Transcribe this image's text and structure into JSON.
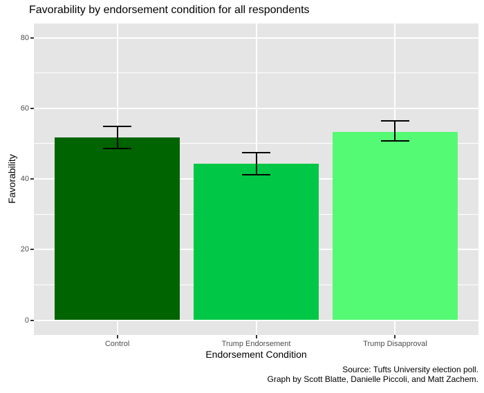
{
  "chart_data": {
    "type": "bar",
    "title": "Favorability by endorsement condition for all respondents",
    "xlabel": "Endorsement Condition",
    "ylabel": "Favorability",
    "categories": [
      "Control",
      "Trump Endorsement",
      "Trump Disapproval"
    ],
    "values": [
      51.7,
      44.3,
      53.3
    ],
    "error_low": [
      48.6,
      41.2,
      50.8
    ],
    "error_high": [
      54.9,
      47.4,
      56.4
    ],
    "bar_colors": [
      "#006400",
      "#00C846",
      "#54FA74"
    ],
    "ylim": [
      0,
      80
    ],
    "yticks": [
      0,
      20,
      40,
      60,
      80
    ],
    "yticks_minor": [
      10,
      30,
      50,
      70
    ],
    "grid": "on",
    "legend": "none",
    "panel_bg": "#E5E5E5",
    "grid_color": "#FFFFFF",
    "errorbar_color": "#000000"
  },
  "caption": {
    "line1": "Source: Tufts University election poll.",
    "line2": "Graph by Scott Blatte, Danielle Piccoli, and Matt Zachem."
  }
}
